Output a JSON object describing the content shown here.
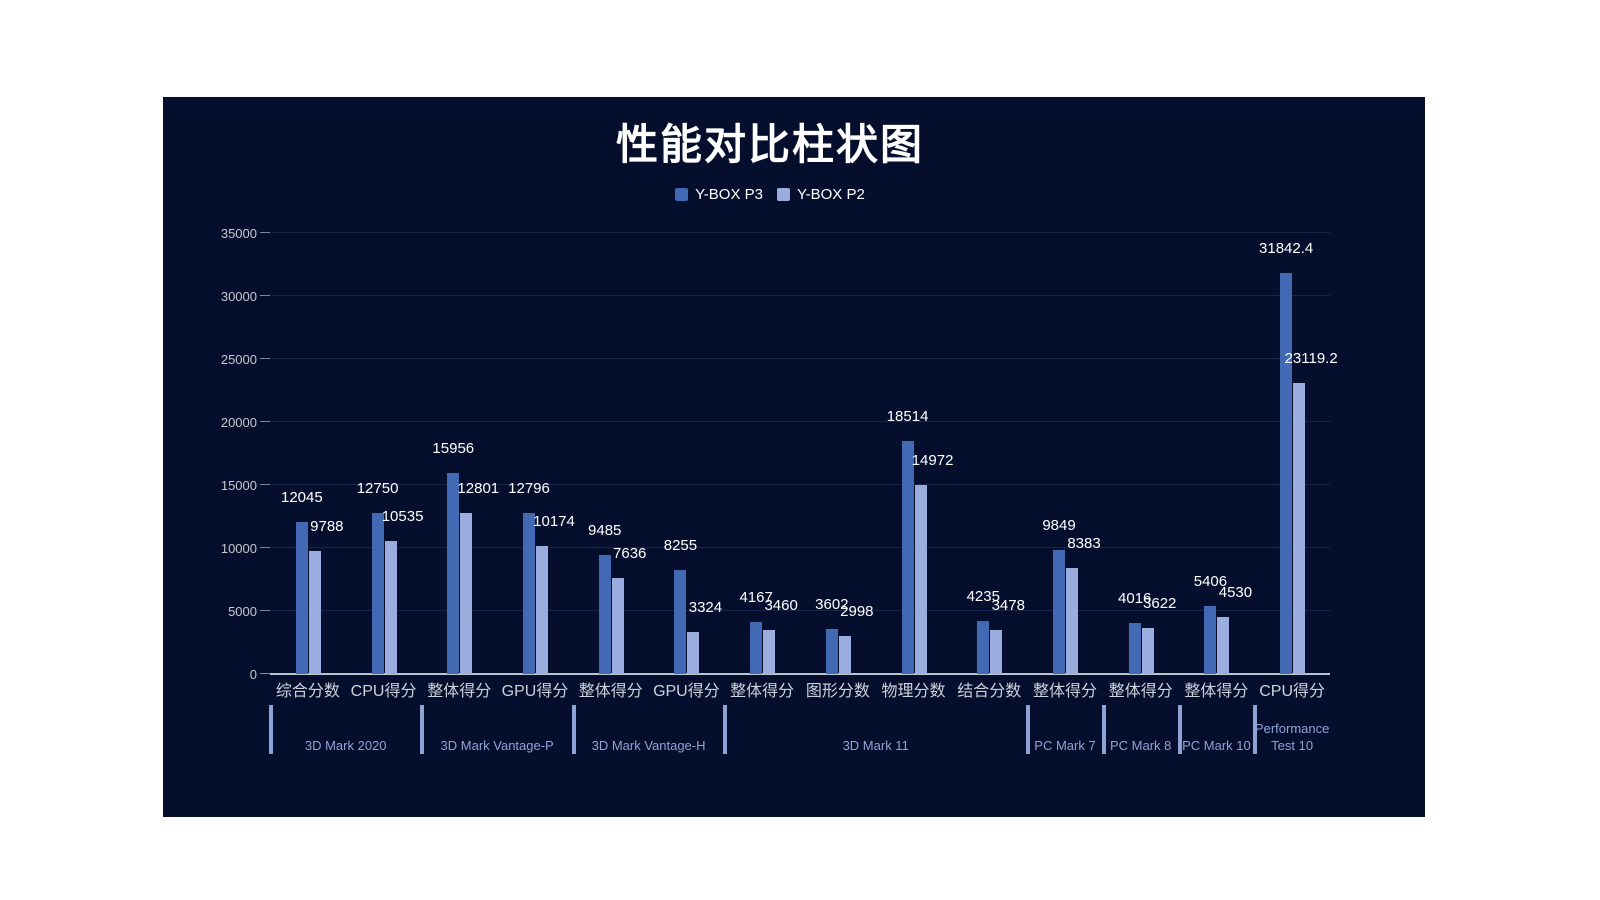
{
  "chart_data": {
    "type": "bar",
    "title": "性能对比柱状图",
    "legend_position": "top",
    "grid": true,
    "ylim": [
      0,
      35000
    ],
    "y_ticks": [
      0,
      5000,
      10000,
      15000,
      20000,
      25000,
      30000,
      35000
    ],
    "categories": [
      "综合分数",
      "CPU得分",
      "整体得分",
      "GPU得分",
      "整体得分",
      "GPU得分",
      "整体得分",
      "图形分数",
      "物理分数",
      "结合分数",
      "整体得分",
      "整体得分",
      "整体得分",
      "CPU得分"
    ],
    "series": [
      {
        "name": "Y-BOX P3",
        "color": "#4169b4",
        "values": [
          12045,
          12750,
          15956,
          12796,
          9485,
          8255,
          4167,
          3602,
          18514,
          4235,
          9849,
          4016,
          5406,
          31842.4
        ]
      },
      {
        "name": "Y-BOX P2",
        "color": "#9badde",
        "values": [
          9788,
          10535,
          12801,
          10174,
          7636,
          3324,
          3460,
          2998,
          14972,
          3478,
          8383,
          3622,
          4530,
          23119.2
        ]
      }
    ],
    "groups": [
      {
        "label": "3D Mark 2020",
        "span": 2
      },
      {
        "label": "3D Mark Vantage-P",
        "span": 2
      },
      {
        "label": "3D Mark Vantage-H",
        "span": 2
      },
      {
        "label": "3D Mark 11",
        "span": 4
      },
      {
        "label": "PC Mark 7",
        "span": 1
      },
      {
        "label": "PC Mark 8",
        "span": 1
      },
      {
        "label": "PC Mark 10",
        "span": 1
      },
      {
        "label": "Performance Test 10",
        "span": 1
      }
    ],
    "colors": {
      "background": "#050f2d",
      "title_text": "#ffffff",
      "value_text": "#ffffff",
      "gridline": "#182548",
      "axis_line": "#b9c6cf",
      "tick_text": "#c8c8cd",
      "category_text": "#ccd1dc",
      "group_text": "#8fa2d6"
    }
  }
}
